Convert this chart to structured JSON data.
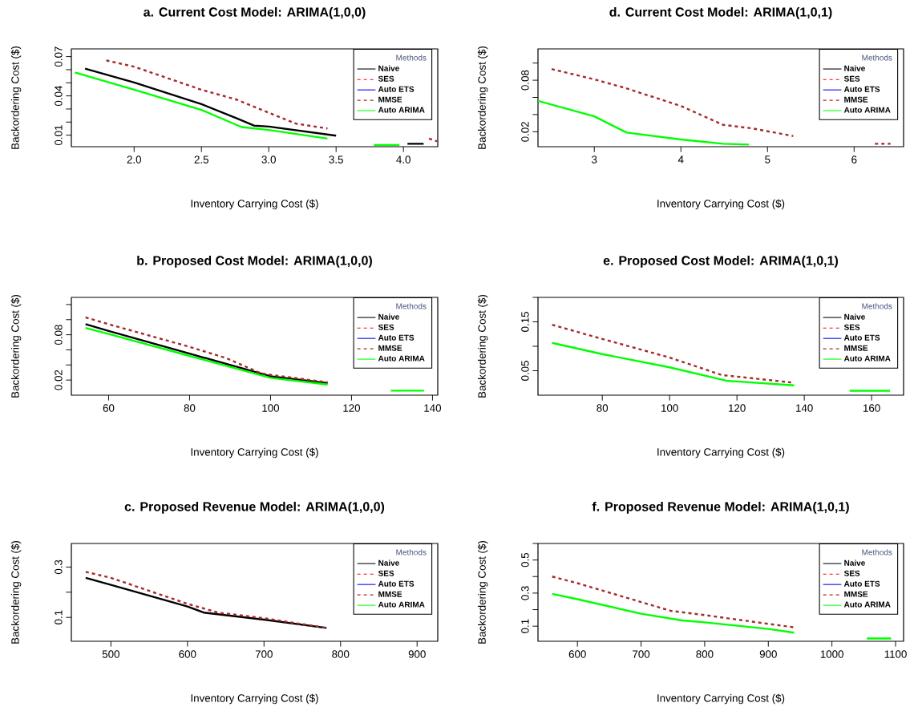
{
  "chart_data": [
    {
      "type": "line",
      "title": "a. Current Cost Model: ARIMA(1,0,0)",
      "xlabel": "Inventory Carrying Cost ($)",
      "ylabel": "Backordering Cost ($)",
      "legend_title": "Methods",
      "legend": "top right",
      "xlim": [
        1.534,
        4.255
      ],
      "ylim": [
        0.0012,
        0.0759
      ],
      "xticks": [
        {
          "value": 2,
          "label": "2.0"
        },
        2.5,
        {
          "value": 3,
          "label": "3.0"
        },
        3.5,
        {
          "value": 4,
          "label": "4.0"
        }
      ],
      "yticks": [
        0.01,
        {
          "value": 0.02,
          "label": null
        },
        {
          "value": 0.03,
          "label": null
        },
        0.04,
        {
          "value": 0.05,
          "label": null
        },
        {
          "value": 0.06,
          "label": null
        },
        0.07
      ],
      "series": [
        {
          "name": "Naive",
          "color": "#000000",
          "line_style": "solid",
          "x": [
            1.636,
            2.0,
            2.5,
            2.766,
            2.89,
            3.0,
            3.5,
            3.75,
            4.03,
            4.15
          ],
          "values": [
            0.0608,
            0.0502,
            0.0337,
            0.0227,
            0.0173,
            0.0166,
            0.0096,
            null,
            0.0034,
            0.0034
          ]
        },
        {
          "name": "SES",
          "color": "#ff0000",
          "line_style": "dashed"
        },
        {
          "name": "Auto ETS",
          "color": "#0000ff",
          "line_style": "solid"
        },
        {
          "name": "MMSE",
          "color": "#a52a2a",
          "line_style": "dashed",
          "x": [
            1.793,
            2.0,
            2.5,
            2.766,
            3.0,
            3.202,
            3.298,
            3.436,
            3.8,
            4.19,
            4.25
          ],
          "values": [
            0.0671,
            0.0623,
            0.0447,
            0.037,
            0.0271,
            0.0188,
            0.0173,
            0.0151,
            null,
            0.0074,
            0.0053
          ]
        },
        {
          "name": "Auto ARIMA",
          "color": "#00ff00",
          "line_style": "solid",
          "x": [
            1.56,
            2.0,
            2.5,
            2.798,
            3.0,
            3.436,
            3.6,
            3.78,
            3.97
          ],
          "values": [
            0.0579,
            0.0447,
            0.0293,
            0.0162,
            0.014,
            0.0074,
            null,
            0.0025,
            0.0025
          ]
        }
      ]
    },
    {
      "type": "line",
      "title": "d. Current Cost Model: ARIMA(1,0,1)",
      "xlabel": "Inventory Carrying Cost ($)",
      "ylabel": "Backordering Cost ($)",
      "legend_title": "Methods",
      "legend": "top right",
      "xlim": [
        2.35,
        6.571
      ],
      "ylim": [
        0.0026,
        0.1165
      ],
      "xticks": [
        3,
        4,
        5,
        6
      ],
      "yticks": [
        0.02,
        {
          "value": 0.04,
          "label": null
        },
        {
          "value": 0.06,
          "label": null
        },
        0.08,
        {
          "value": 0.1,
          "label": null
        }
      ],
      "series": [
        {
          "name": "Naive",
          "color": "#000000",
          "line_style": "solid"
        },
        {
          "name": "SES",
          "color": "#ff0000",
          "line_style": "dashed"
        },
        {
          "name": "Auto ETS",
          "color": "#0000ff",
          "line_style": "solid"
        },
        {
          "name": "MMSE",
          "color": "#a52a2a",
          "line_style": "dashed",
          "x": [
            2.508,
            3.0,
            3.356,
            4.0,
            4.488,
            4.818,
            5.297,
            5.8,
            6.24,
            6.42
          ],
          "values": [
            0.093,
            0.081,
            0.071,
            0.05,
            0.028,
            0.024,
            0.015,
            null,
            0.006,
            0.006
          ]
        },
        {
          "name": "Auto ARIMA",
          "color": "#00ff00",
          "line_style": "solid",
          "x": [
            2.35,
            3.0,
            3.373,
            4.0,
            4.488,
            4.785
          ],
          "values": [
            0.056,
            0.038,
            0.019,
            0.011,
            0.006,
            0.005
          ]
        }
      ]
    },
    {
      "type": "line",
      "title": "b. Proposed Cost Model: ARIMA(1,0,0)",
      "xlabel": "Inventory Carrying Cost ($)",
      "ylabel": "Backordering Cost ($)",
      "legend_title": "Methods",
      "legend": "top right",
      "xlim": [
        50.8,
        141.3
      ],
      "ylim": [
        0.0,
        0.1295
      ],
      "xticks": [
        60,
        80,
        100,
        120,
        140
      ],
      "yticks": [
        0.02,
        {
          "value": 0.04,
          "label": null
        },
        {
          "value": 0.06,
          "label": null
        },
        0.08,
        {
          "value": 0.1,
          "label": null
        },
        {
          "value": 0.12,
          "label": null
        }
      ],
      "series": [
        {
          "name": "Naive",
          "color": "#000000",
          "line_style": "solid",
          "x": [
            54.3,
            60,
            80,
            100,
            114.1
          ],
          "values": [
            0.094,
            0.085,
            0.055,
            0.025,
            0.016
          ]
        },
        {
          "name": "SES",
          "color": "#ff0000",
          "line_style": "dashed"
        },
        {
          "name": "Auto ETS",
          "color": "#0000ff",
          "line_style": "solid"
        },
        {
          "name": "MMSE",
          "color": "#a52a2a",
          "line_style": "dashed",
          "x": [
            54.3,
            60,
            80,
            89.1,
            97.6,
            100,
            114.1
          ],
          "values": [
            0.103,
            0.094,
            0.064,
            0.049,
            0.029,
            0.027,
            0.017
          ]
        },
        {
          "name": "Auto ARIMA",
          "color": "#00ff00",
          "line_style": "solid",
          "x": [
            54.3,
            60,
            80,
            100,
            114.1,
            122,
            129.7,
            137.9
          ],
          "values": [
            0.089,
            0.081,
            0.052,
            0.023,
            0.014,
            null,
            0.006,
            0.006
          ]
        }
      ]
    },
    {
      "type": "line",
      "title": "e. Proposed Cost Model: ARIMA(1,0,1)",
      "xlabel": "Inventory Carrying Cost ($)",
      "ylabel": "Backordering Cost ($)",
      "legend_title": "Methods",
      "legend": "top right",
      "xlim": [
        60.9,
        169.5
      ],
      "ylim": [
        0.0,
        0.2
      ],
      "xticks": [
        80,
        100,
        120,
        140,
        160
      ],
      "yticks": [
        0.05,
        {
          "value": 0.1,
          "label": null
        },
        0.15,
        {
          "value": 0.2,
          "label": null
        }
      ],
      "series": [
        {
          "name": "Naive",
          "color": "#000000",
          "line_style": "solid"
        },
        {
          "name": "SES",
          "color": "#ff0000",
          "line_style": "dashed"
        },
        {
          "name": "Auto ETS",
          "color": "#0000ff",
          "line_style": "solid"
        },
        {
          "name": "MMSE",
          "color": "#a52a2a",
          "line_style": "dashed",
          "x": [
            65.1,
            80,
            100,
            115.6,
            120,
            136.1
          ],
          "values": [
            0.144,
            0.115,
            0.077,
            0.041,
            0.038,
            0.026
          ]
        },
        {
          "name": "Auto ARIMA",
          "color": "#00ff00",
          "line_style": "solid",
          "x": [
            65.1,
            80,
            100,
            117.3,
            120,
            137,
            145,
            153.5,
            165.5
          ],
          "values": [
            0.107,
            0.084,
            0.057,
            0.029,
            0.028,
            0.02,
            null,
            0.009,
            0.009
          ]
        }
      ]
    },
    {
      "type": "line",
      "title": "c. Proposed Revenue Model: ARIMA(1,0,0)",
      "xlabel": "Inventory Carrying Cost ($)",
      "ylabel": "Backordering Cost ($)",
      "legend_title": "Methods",
      "legend": "top right",
      "xlim": [
        448.3,
        927
      ],
      "ylim": [
        0.0051,
        0.3937
      ],
      "xticks": [
        500,
        600,
        700,
        800,
        900
      ],
      "yticks": [
        0.1,
        {
          "value": 0.2,
          "label": null
        },
        0.3
      ],
      "series": [
        {
          "name": "Naive",
          "color": "#000000",
          "line_style": "solid",
          "x": [
            467,
            500,
            600,
            621.3,
            700,
            781.6
          ],
          "values": [
            0.257,
            0.229,
            0.143,
            0.119,
            0.091,
            0.058
          ]
        },
        {
          "name": "SES",
          "color": "#ff0000",
          "line_style": "dashed"
        },
        {
          "name": "Auto ETS",
          "color": "#0000ff",
          "line_style": "solid"
        },
        {
          "name": "MMSE",
          "color": "#a52a2a",
          "line_style": "dashed",
          "x": [
            467,
            500,
            600,
            640,
            700,
            781.6
          ],
          "values": [
            0.281,
            0.257,
            0.154,
            0.119,
            0.097,
            0.058
          ]
        },
        {
          "name": "Auto ARIMA",
          "color": "#00ff00",
          "line_style": "solid"
        }
      ]
    },
    {
      "type": "line",
      "title": "f. Proposed Revenue Model: ARIMA(1,0,1)",
      "xlabel": "Inventory Carrying Cost ($)",
      "ylabel": "Backordering Cost ($)",
      "legend_title": "Methods",
      "legend": "top right",
      "xlim": [
        538,
        1112.6
      ],
      "ylim": [
        0.0088,
        0.6
      ],
      "xticks": [
        600,
        700,
        800,
        900,
        1000,
        1100
      ],
      "yticks": [
        0.1,
        {
          "value": 0.2,
          "label": null
        },
        0.3,
        {
          "value": 0.4,
          "label": null
        },
        0.5,
        {
          "value": 0.6,
          "label": null
        }
      ],
      "series": [
        {
          "name": "Naive",
          "color": "#000000",
          "line_style": "solid"
        },
        {
          "name": "SES",
          "color": "#ff0000",
          "line_style": "dashed"
        },
        {
          "name": "Auto ETS",
          "color": "#0000ff",
          "line_style": "solid"
        },
        {
          "name": "MMSE",
          "color": "#a52a2a",
          "line_style": "dashed",
          "x": [
            560.4,
            600,
            700,
            746.3,
            800,
            900,
            940.5
          ],
          "values": [
            0.4,
            0.36,
            0.246,
            0.193,
            0.167,
            0.114,
            0.093
          ]
        },
        {
          "name": "Auto ARIMA",
          "color": "#00ff00",
          "line_style": "solid",
          "x": [
            560.4,
            600,
            700,
            764.5,
            800,
            900,
            940.5,
            1000,
            1054.9,
            1093
          ],
          "values": [
            0.295,
            0.263,
            0.175,
            0.135,
            0.123,
            0.083,
            0.061,
            null,
            0.026,
            0.026
          ]
        }
      ]
    }
  ]
}
